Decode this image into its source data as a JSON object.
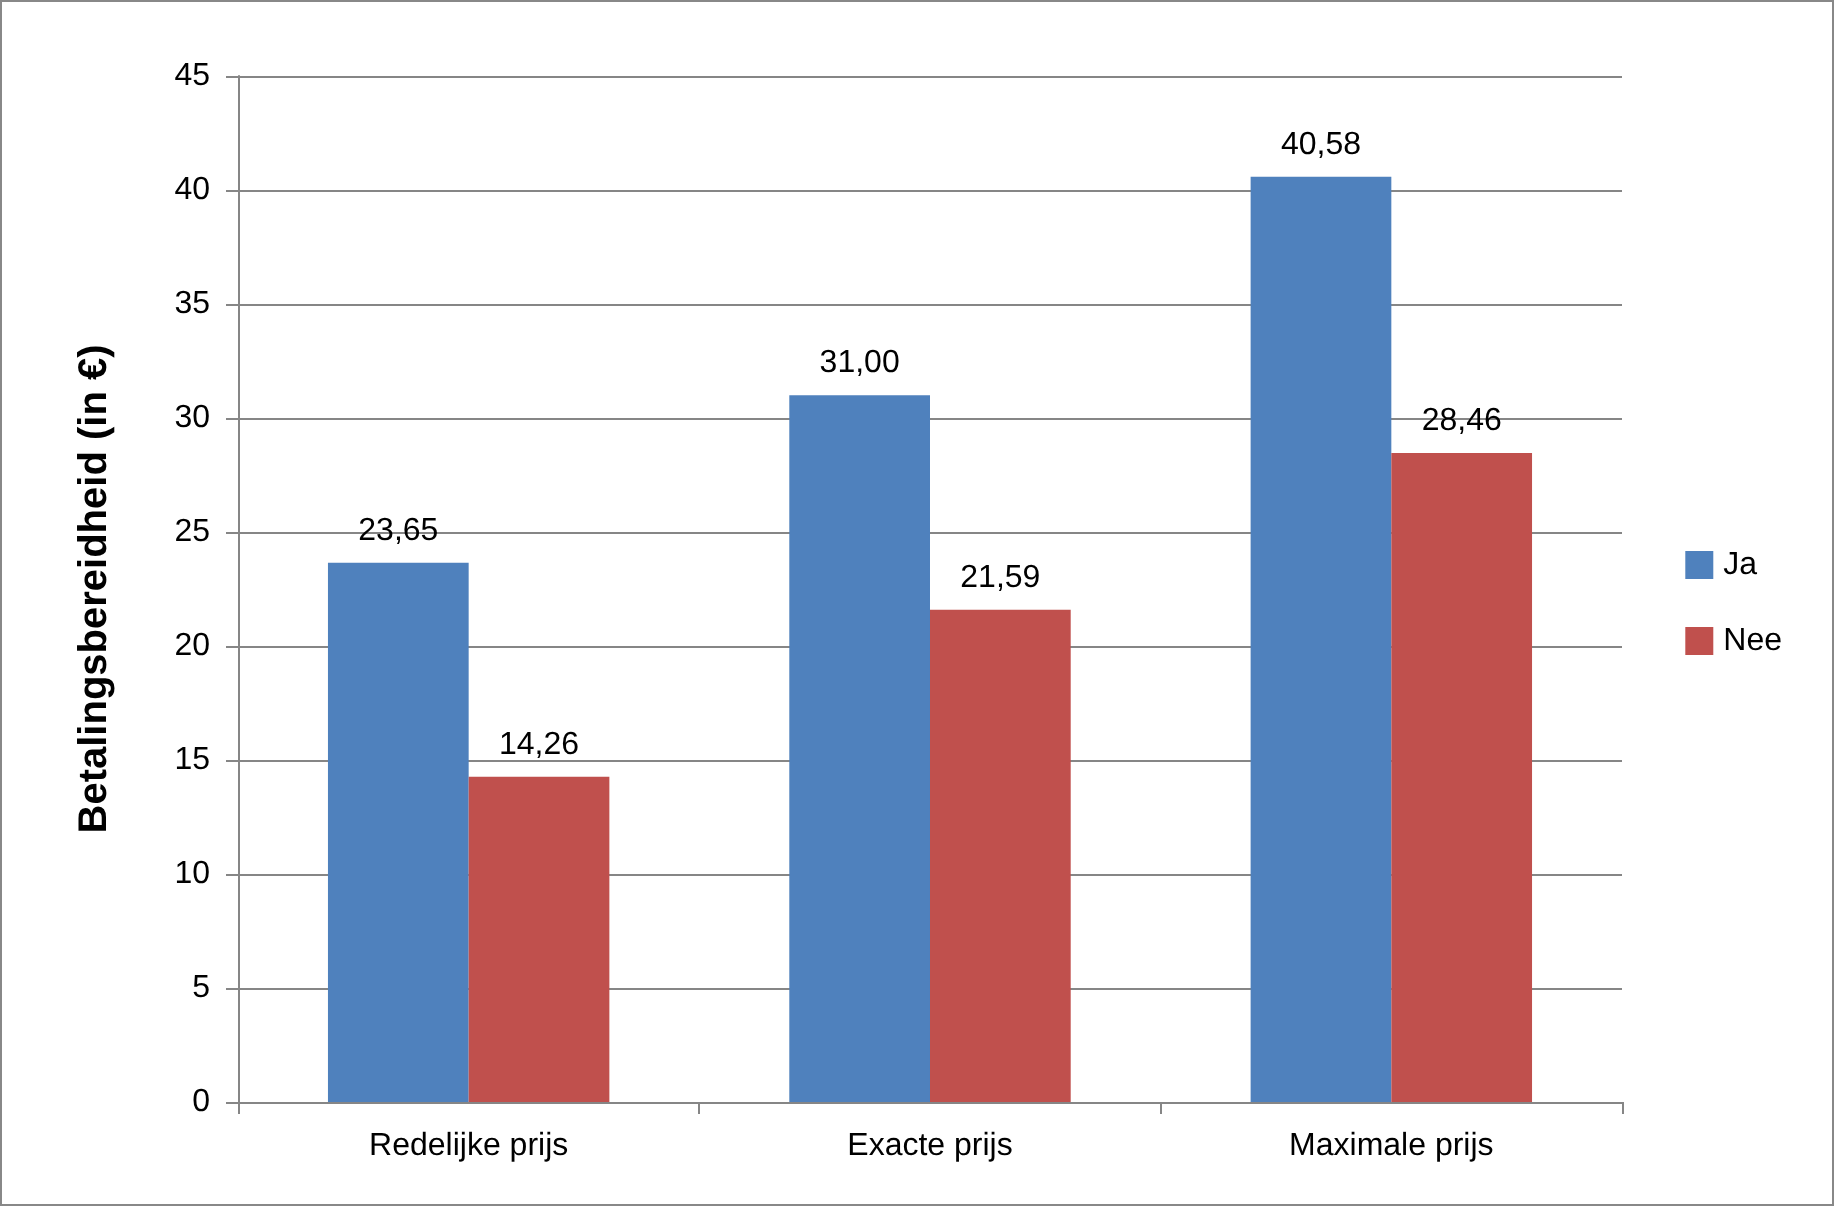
{
  "chart_data": {
    "type": "bar",
    "ylabel": "Betalingsbereidheid (in €)",
    "categories": [
      "Redelijke prijs",
      "Exacte prijs",
      "Maximale prijs"
    ],
    "series": [
      {
        "name": "Ja",
        "color": "#4f81bd",
        "values": [
          23.65,
          31.0,
          40.58
        ],
        "value_labels": [
          "23,65",
          "31,00",
          "40,58"
        ]
      },
      {
        "name": "Nee",
        "color": "#c0504d",
        "values": [
          14.26,
          21.59,
          28.46
        ],
        "value_labels": [
          "14,26",
          "21,59",
          "28,46"
        ]
      }
    ],
    "ylim": [
      0,
      45
    ],
    "yticks": [
      0,
      5,
      10,
      15,
      20,
      25,
      30,
      35,
      40,
      45
    ],
    "grid": "y",
    "legend": "right"
  }
}
